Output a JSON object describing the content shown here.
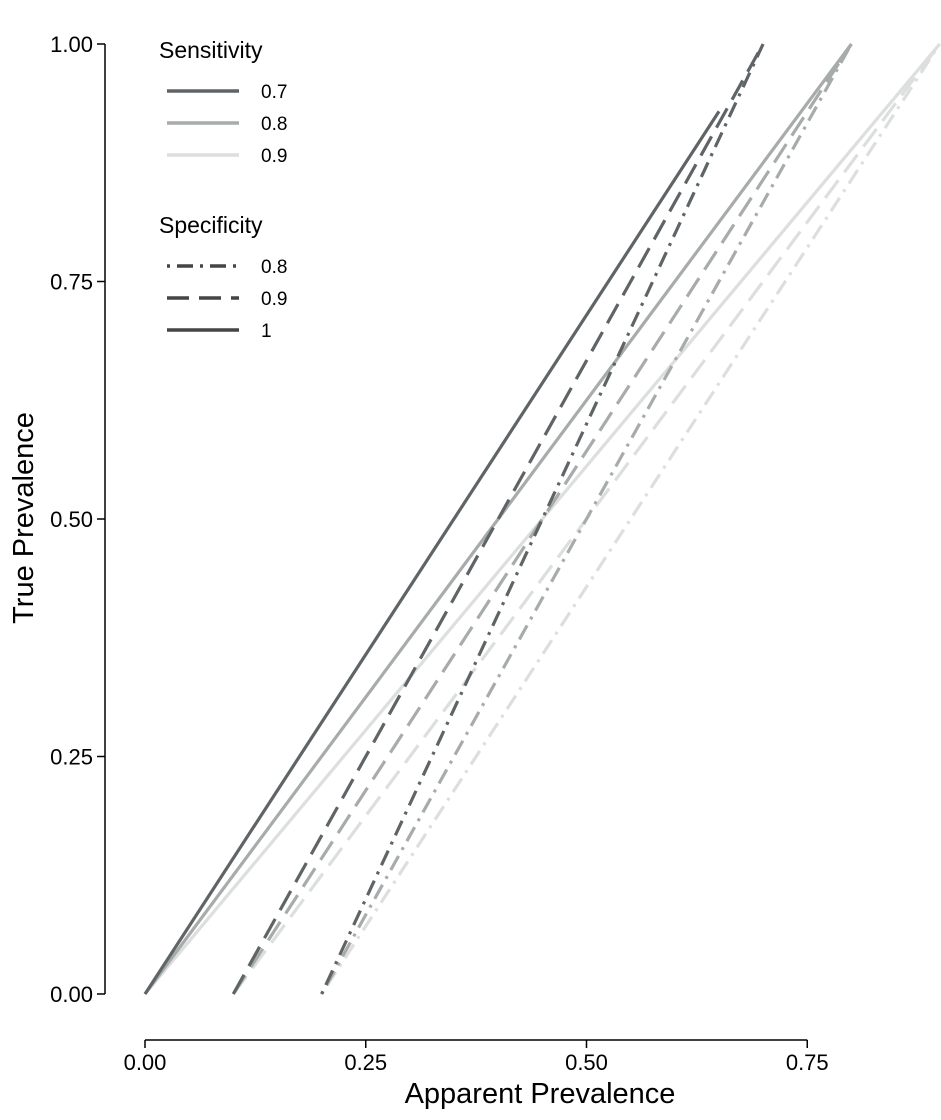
{
  "chart_data": {
    "type": "line",
    "title": "",
    "xlabel": "Apparent Prevalence",
    "ylabel": "True Prevalence",
    "xlim": [
      0,
      0.9
    ],
    "ylim": [
      0,
      1
    ],
    "xticks": [
      0,
      0.25,
      0.5,
      0.75
    ],
    "xtick_labels": [
      "0.00",
      "0.25",
      "0.50",
      "0.75"
    ],
    "yticks": [
      0,
      0.25,
      0.5,
      0.75,
      1
    ],
    "ytick_labels": [
      "0.00",
      "0.25",
      "0.50",
      "0.75",
      "1.00"
    ],
    "grid": false,
    "legend_position": "top-left",
    "legend": {
      "color_title": "Sensitivity",
      "color_entries": [
        {
          "label": "0.7",
          "color": "#5f6466"
        },
        {
          "label": "0.8",
          "color": "#a7acab"
        },
        {
          "label": "0.9",
          "color": "#dcdfde"
        }
      ],
      "linetype_title": "Specificity",
      "linetype_entries": [
        {
          "label": "0.8",
          "dash": "dotdash",
          "color": "#454545"
        },
        {
          "label": "0.9",
          "dash": "longdash",
          "color": "#454545"
        },
        {
          "label": "1",
          "dash": "solid",
          "color": "#454545"
        }
      ]
    },
    "series": [
      {
        "sensitivity": "0.7",
        "specificity": "1",
        "color": "#5f6466",
        "dash": "solid",
        "x": [
          0,
          0.65
        ],
        "y": [
          0,
          0.929
        ]
      },
      {
        "sensitivity": "0.7",
        "specificity": "0.9",
        "color": "#5f6466",
        "dash": "longdash",
        "x": [
          0.1,
          0.7
        ],
        "y": [
          0,
          1
        ]
      },
      {
        "sensitivity": "0.7",
        "specificity": "0.8",
        "color": "#5f6466",
        "dash": "dotdash",
        "x": [
          0.2,
          0.7
        ],
        "y": [
          0,
          1
        ]
      },
      {
        "sensitivity": "0.8",
        "specificity": "1",
        "color": "#a7acab",
        "dash": "solid",
        "x": [
          0,
          0.8
        ],
        "y": [
          0,
          1
        ]
      },
      {
        "sensitivity": "0.8",
        "specificity": "0.9",
        "color": "#a7acab",
        "dash": "longdash",
        "x": [
          0.1,
          0.8
        ],
        "y": [
          0,
          1
        ]
      },
      {
        "sensitivity": "0.8",
        "specificity": "0.8",
        "color": "#a7acab",
        "dash": "dotdash",
        "x": [
          0.2,
          0.8
        ],
        "y": [
          0,
          1
        ]
      },
      {
        "sensitivity": "0.9",
        "specificity": "1",
        "color": "#dcdfde",
        "dash": "solid",
        "x": [
          0,
          0.9
        ],
        "y": [
          0,
          1
        ]
      },
      {
        "sensitivity": "0.9",
        "specificity": "0.9",
        "color": "#dcdfde",
        "dash": "longdash",
        "x": [
          0.1,
          0.9
        ],
        "y": [
          0,
          1
        ]
      },
      {
        "sensitivity": "0.9",
        "specificity": "0.8",
        "color": "#dcdfde",
        "dash": "dotdash",
        "x": [
          0.2,
          0.9
        ],
        "y": [
          0,
          1
        ]
      }
    ]
  }
}
